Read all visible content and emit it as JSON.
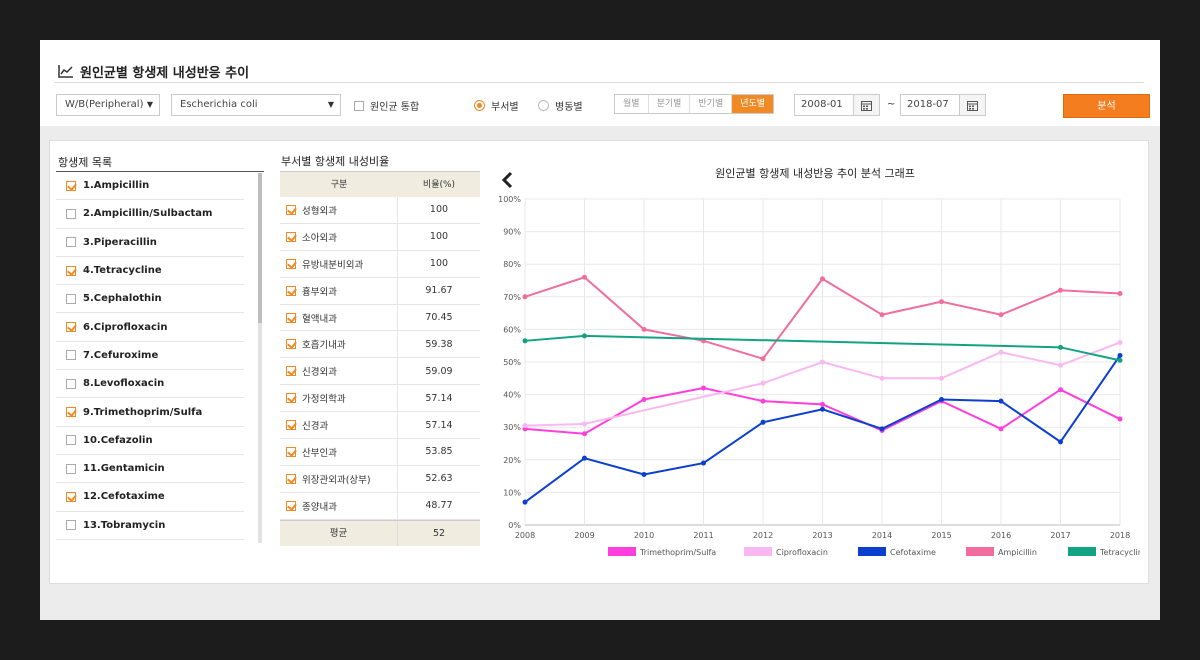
{
  "header": {
    "title": "원인균별 항생제 내성반응 추이"
  },
  "filters": {
    "specimen": "W/B(Peripheral)",
    "organism": "Escherichia coli",
    "merge_label": "원인균 통합",
    "radio_dept": "부서별",
    "radio_ward": "병동별",
    "periods": [
      "월별",
      "분기별",
      "반기별",
      "년도별"
    ],
    "date_from": "2008-01",
    "tilde": "~",
    "date_to": "2018-07",
    "analyze_label": "분석"
  },
  "antibiotics": {
    "title": "항생제 목록",
    "items": [
      {
        "label": "1.Ampicillin",
        "checked": true
      },
      {
        "label": "2.Ampicillin/Sulbactam",
        "checked": false
      },
      {
        "label": "3.Piperacillin",
        "checked": false
      },
      {
        "label": "4.Tetracycline",
        "checked": true
      },
      {
        "label": "5.Cephalothin",
        "checked": false
      },
      {
        "label": "6.Ciprofloxacin",
        "checked": true
      },
      {
        "label": "7.Cefuroxime",
        "checked": false
      },
      {
        "label": "8.Levofloxacin",
        "checked": false
      },
      {
        "label": "9.Trimethoprim/Sulfa",
        "checked": true
      },
      {
        "label": "10.Cefazolin",
        "checked": false
      },
      {
        "label": "11.Gentamicin",
        "checked": false
      },
      {
        "label": "12.Cefotaxime",
        "checked": true
      },
      {
        "label": "13.Tobramycin",
        "checked": false
      }
    ]
  },
  "dept_table": {
    "title": "부서별 항생제 내성비율",
    "col_dept": "구분",
    "col_rate": "비율(%)",
    "rows": [
      {
        "dept": "성형외과",
        "rate": "100"
      },
      {
        "dept": "소아외과",
        "rate": "100"
      },
      {
        "dept": "유방내분비외과",
        "rate": "100"
      },
      {
        "dept": "흉부외과",
        "rate": "91.67"
      },
      {
        "dept": "혈액내과",
        "rate": "70.45"
      },
      {
        "dept": "호흡기내과",
        "rate": "59.38"
      },
      {
        "dept": "신경외과",
        "rate": "59.09"
      },
      {
        "dept": "가정의학과",
        "rate": "57.14"
      },
      {
        "dept": "신경과",
        "rate": "57.14"
      },
      {
        "dept": "산부인과",
        "rate": "53.85"
      },
      {
        "dept": "위장관외과(상부)",
        "rate": "52.63"
      },
      {
        "dept": "종양내과",
        "rate": "48.77"
      }
    ],
    "avg_label": "평균",
    "avg_value": "52"
  },
  "chart_data": {
    "type": "line",
    "title": "원인균별 항생제 내성반응 추이 분석 그래프",
    "x": [
      "2008",
      "2009",
      "2010",
      "2011",
      "2012",
      "2013",
      "2014",
      "2015",
      "2016",
      "2017",
      "2018"
    ],
    "ylim": [
      0,
      100
    ],
    "yticks": [
      "0%",
      "10%",
      "20%",
      "30%",
      "40%",
      "50%",
      "60%",
      "70%",
      "80%",
      "90%",
      "100%"
    ],
    "grid": true,
    "legend": "bottom",
    "series": [
      {
        "name": "Trimethoprim/Sulfa",
        "color": "#ff3fdc",
        "values": [
          29.5,
          28,
          38.5,
          42,
          38,
          37,
          29,
          38,
          29.5,
          41.5,
          32.5
        ]
      },
      {
        "name": "Ciprofloxacin",
        "color": "#f9b8f2",
        "values": [
          30.5,
          31,
          null,
          null,
          43.5,
          50,
          45,
          45,
          53,
          49,
          56
        ]
      },
      {
        "name": "Cefotaxime",
        "color": "#0d3fcf",
        "values": [
          7,
          20.5,
          15.5,
          19,
          31.5,
          35.5,
          29.5,
          38.5,
          38,
          25.5,
          52
        ]
      },
      {
        "name": "Ampicillin",
        "color": "#f06d9e",
        "values": [
          70,
          76,
          60,
          56.5,
          51,
          75.5,
          64.5,
          68.5,
          64.5,
          72,
          71
        ]
      },
      {
        "name": "Tetracycline",
        "color": "#13a383",
        "values": [
          56.5,
          58,
          null,
          null,
          null,
          null,
          null,
          null,
          null,
          54.5,
          50.5
        ]
      }
    ]
  }
}
